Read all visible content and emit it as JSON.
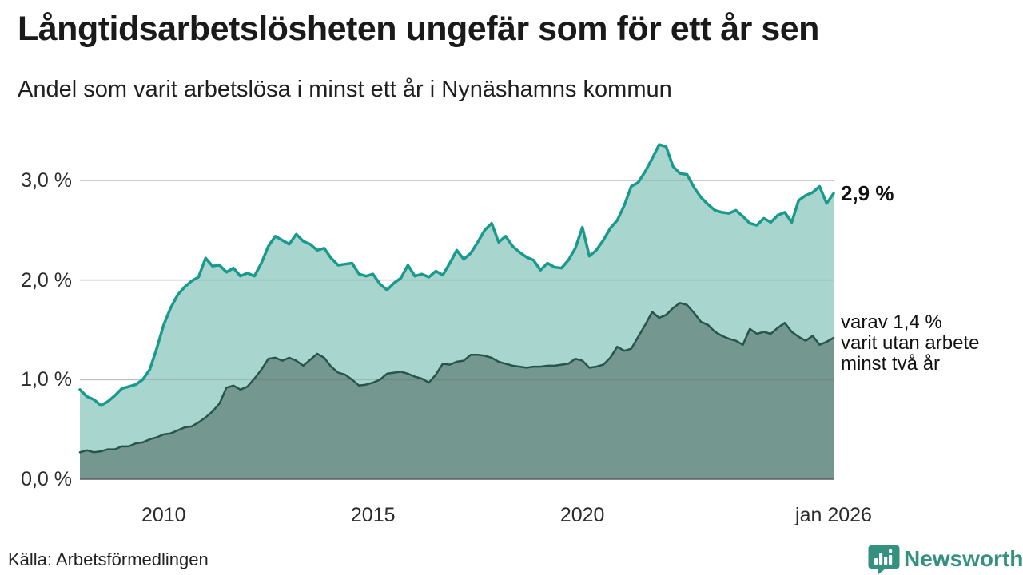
{
  "header": {
    "title": "Långtidsarbetslösheten ungefär som för ett år sen",
    "subtitle": "Andel som varit arbetslösa i minst ett år i Nynäshamns kommun"
  },
  "annotations": {
    "end_value": "2,9 %",
    "secondary": [
      "varav 1,4 %",
      "varit utan arbete",
      "minst två år"
    ]
  },
  "footer": {
    "source": "Källa: Arbetsförmedlingen",
    "brand": "Newsworthy"
  },
  "colors": {
    "line_total": "#1a9a8c",
    "fill_total": "#a9d5cf",
    "line_two_year": "#27544d",
    "fill_two_year": "#74978f",
    "grid": "#d9d9d9",
    "grid_overlay": "rgba(90,90,90,0.22)",
    "baseline": "#5f5f5f",
    "text": "#1a1a1a",
    "brand_teal": "#35917f"
  },
  "chart_data": {
    "type": "area",
    "title": "Långtidsarbetslösheten ungefär som för ett år sen",
    "subtitle": "Andel som varit arbetslösa i minst ett år i Nynäshamns kommun",
    "unit": "%",
    "grid": true,
    "x_range": [
      2008.0,
      2026.0
    ],
    "ylim": [
      0,
      3.5
    ],
    "y_axis_max_gridline": 3,
    "y_ticks": [
      {
        "v": 0,
        "label": "0,0 %"
      },
      {
        "v": 1,
        "label": "1,0 %"
      },
      {
        "v": 2,
        "label": "2,0 %"
      },
      {
        "v": 3,
        "label": "3,0 %"
      }
    ],
    "x_ticks": [
      {
        "year": 2010,
        "label": "2010"
      },
      {
        "year": 2015,
        "label": "2015"
      },
      {
        "year": 2020,
        "label": "2020"
      },
      {
        "year": 2026,
        "label": "jan 2026"
      }
    ],
    "x_step_years": 0.16667,
    "series": [
      {
        "id": "unemployed_one_year_plus",
        "label": "Andel som varit arbetslösa i minst ett år",
        "end_label": "2,9 %",
        "end_value": 2.9,
        "values": [
          0.9,
          0.83,
          0.8,
          0.74,
          0.78,
          0.84,
          0.91,
          0.93,
          0.95,
          1.0,
          1.1,
          1.31,
          1.55,
          1.72,
          1.85,
          1.93,
          1.99,
          2.03,
          2.22,
          2.14,
          2.15,
          2.08,
          2.12,
          2.04,
          2.07,
          2.04,
          2.17,
          2.34,
          2.44,
          2.4,
          2.36,
          2.46,
          2.39,
          2.36,
          2.3,
          2.32,
          2.22,
          2.15,
          2.16,
          2.17,
          2.06,
          2.04,
          2.06,
          1.96,
          1.9,
          1.97,
          2.02,
          2.15,
          2.04,
          2.06,
          2.03,
          2.09,
          2.05,
          2.17,
          2.3,
          2.21,
          2.27,
          2.38,
          2.5,
          2.57,
          2.38,
          2.44,
          2.34,
          2.28,
          2.23,
          2.2,
          2.1,
          2.17,
          2.13,
          2.12,
          2.2,
          2.32,
          2.53,
          2.24,
          2.3,
          2.4,
          2.52,
          2.6,
          2.75,
          2.94,
          2.98,
          3.09,
          3.22,
          3.36,
          3.34,
          3.14,
          3.07,
          3.06,
          2.93,
          2.83,
          2.76,
          2.7,
          2.68,
          2.67,
          2.7,
          2.64,
          2.57,
          2.55,
          2.62,
          2.58,
          2.65,
          2.68,
          2.58,
          2.8,
          2.85,
          2.88,
          2.94,
          2.77,
          2.87
        ]
      },
      {
        "id": "unemployed_two_year_plus",
        "label": "varav varit utan arbete minst två år",
        "end_label": "varav 1,4 % varit utan arbete minst två år",
        "end_value": 1.4,
        "values": [
          0.27,
          0.29,
          0.27,
          0.28,
          0.3,
          0.3,
          0.33,
          0.33,
          0.36,
          0.37,
          0.4,
          0.42,
          0.45,
          0.46,
          0.49,
          0.52,
          0.53,
          0.57,
          0.62,
          0.68,
          0.76,
          0.92,
          0.94,
          0.9,
          0.93,
          1.01,
          1.1,
          1.21,
          1.22,
          1.19,
          1.22,
          1.19,
          1.14,
          1.2,
          1.26,
          1.22,
          1.13,
          1.07,
          1.05,
          1.0,
          0.94,
          0.95,
          0.97,
          1.0,
          1.06,
          1.07,
          1.08,
          1.06,
          1.03,
          1.01,
          0.97,
          1.05,
          1.16,
          1.15,
          1.18,
          1.19,
          1.25,
          1.25,
          1.24,
          1.22,
          1.18,
          1.16,
          1.14,
          1.13,
          1.12,
          1.13,
          1.13,
          1.14,
          1.14,
          1.15,
          1.16,
          1.21,
          1.19,
          1.12,
          1.13,
          1.15,
          1.22,
          1.33,
          1.29,
          1.31,
          1.43,
          1.55,
          1.68,
          1.62,
          1.65,
          1.72,
          1.77,
          1.75,
          1.67,
          1.58,
          1.55,
          1.48,
          1.44,
          1.41,
          1.39,
          1.35,
          1.51,
          1.46,
          1.48,
          1.46,
          1.52,
          1.57,
          1.48,
          1.43,
          1.39,
          1.44,
          1.35,
          1.38,
          1.42
        ]
      }
    ],
    "legend_position": "none"
  }
}
